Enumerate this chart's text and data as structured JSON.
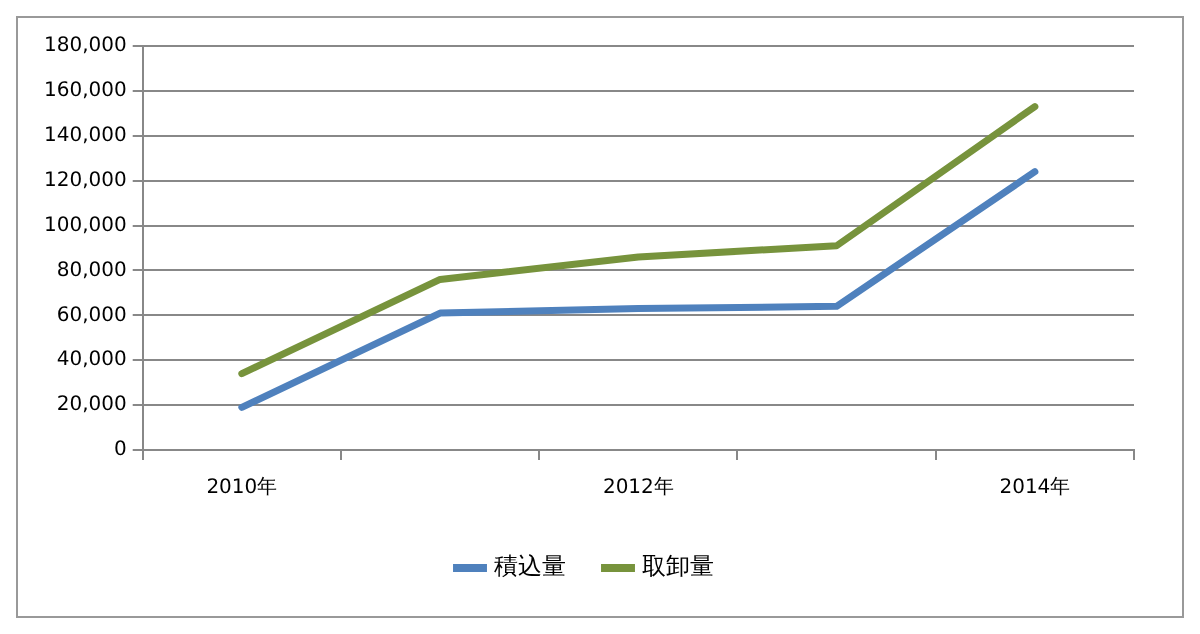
{
  "chart_data": {
    "type": "line",
    "categories": [
      "2010年",
      null,
      "2012年",
      null,
      "2014年"
    ],
    "series": [
      {
        "name": "積込量",
        "color": "#4f81bd",
        "values": [
          19000,
          61000,
          63000,
          64000,
          124000
        ]
      },
      {
        "name": "取卸量",
        "color": "#77933c",
        "values": [
          34000,
          76000,
          86000,
          91000,
          153000
        ]
      }
    ],
    "ylim": [
      0,
      180000
    ],
    "yticks": [
      0,
      {
        "value": 20000,
        "label": "20,000"
      },
      {
        "value": 40000,
        "label": "40,000"
      },
      {
        "value": 60000,
        "label": "60,000"
      },
      {
        "value": 80000,
        "label": "80,000"
      },
      {
        "value": 100000,
        "label": "100,000"
      },
      {
        "value": 120000,
        "label": "120,000"
      },
      {
        "value": 140000,
        "label": "140,000"
      },
      {
        "value": 160000,
        "label": "160,000"
      },
      {
        "value": 180000,
        "label": "180,000"
      }
    ],
    "grid": "y",
    "legend": "bottom",
    "marker": "none",
    "line_style": "solid"
  }
}
